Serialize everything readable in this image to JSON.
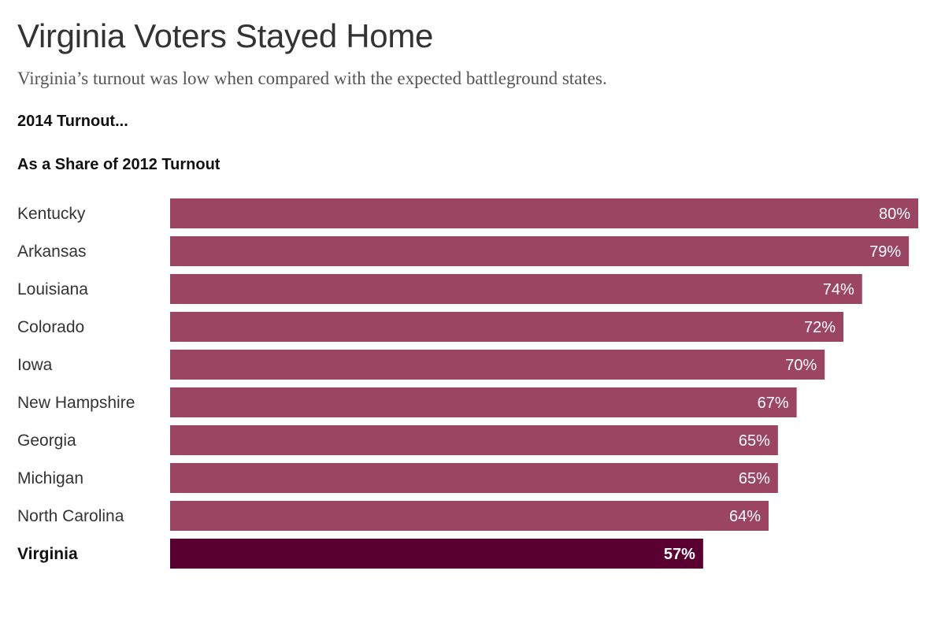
{
  "header": {
    "title": "Virginia Voters Stayed Home",
    "subtitle": "Virginia’s turnout was low when compared with the expected battleground states.",
    "heading": "2014 Turnout...",
    "subheading": "As a Share of 2012 Turnout"
  },
  "chart_data": {
    "type": "bar",
    "orientation": "horizontal",
    "title": "Virginia Voters Stayed Home",
    "subtitle": "Virginia’s turnout was low when compared with the expected battleground states.",
    "categories": [
      "Kentucky",
      "Arkansas",
      "Louisiana",
      "Colorado",
      "Iowa",
      "New Hampshire",
      "Georgia",
      "Michigan",
      "North Carolina",
      "Virginia"
    ],
    "values": [
      80,
      79,
      74,
      72,
      70,
      67,
      65,
      65,
      64,
      57
    ],
    "value_labels": [
      "80%",
      "79%",
      "74%",
      "72%",
      "70%",
      "67%",
      "65%",
      "65%",
      "64%",
      "57%"
    ],
    "unit": "%",
    "highlight": "Virginia",
    "xlabel": "",
    "ylabel": "",
    "xlim": [
      0,
      80
    ],
    "grid": false,
    "colors": {
      "bar": "#9b4563",
      "highlight": "#5a0030"
    }
  }
}
